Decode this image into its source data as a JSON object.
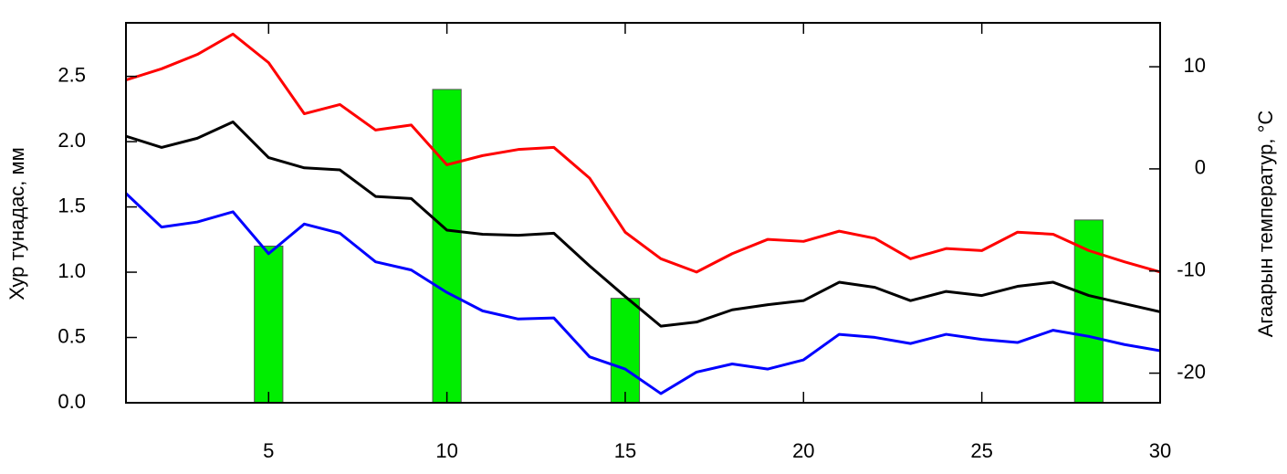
{
  "chart_data": {
    "type": "bar-line",
    "ylabel": "Хур тунадас, мм",
    "y2label": "Агаарын температур,  °C",
    "x": [
      1,
      2,
      3,
      4,
      5,
      6,
      7,
      8,
      9,
      10,
      11,
      12,
      13,
      14,
      15,
      16,
      17,
      18,
      19,
      20,
      21,
      22,
      23,
      24,
      25,
      26,
      27,
      28,
      29,
      30
    ],
    "xlim": [
      1,
      30
    ],
    "xticks": [
      5,
      10,
      15,
      20,
      25,
      30
    ],
    "ylim": [
      0,
      2.91
    ],
    "yticks": [
      {
        "value": 0,
        "label": "0.0"
      },
      0.5,
      {
        "value": 1,
        "label": "1.0"
      },
      1.5,
      {
        "value": 2,
        "label": "2.0"
      },
      2.5
    ],
    "y2lim": [
      -22.9,
      14.3
    ],
    "y2ticks": [
      -20,
      -10,
      0,
      10
    ],
    "bar_width": 0.8,
    "series": [
      {
        "type": "bar",
        "color": "#00ee00",
        "values": [
          null,
          null,
          null,
          null,
          1.2,
          null,
          null,
          null,
          null,
          2.4,
          null,
          null,
          null,
          null,
          0.8,
          null,
          null,
          null,
          null,
          null,
          null,
          null,
          null,
          null,
          null,
          null,
          null,
          1.4,
          null,
          null
        ]
      },
      {
        "type": "line",
        "axis": "y2",
        "color": "#ff0000",
        "values": [
          8.7,
          9.8,
          11.2,
          13.2,
          10.4,
          5.4,
          6.3,
          3.8,
          4.3,
          0.4,
          1.3,
          1.9,
          2.1,
          -0.9,
          -6.2,
          -8.8,
          -10.1,
          -8.3,
          -6.9,
          -7.1,
          -6.1,
          -6.8,
          -8.8,
          -7.8,
          -8.0,
          -6.2,
          -6.4,
          -8.0,
          -9.1,
          -10.1
        ]
      },
      {
        "type": "line",
        "axis": "y2",
        "color": "#000000",
        "values": [
          3.2,
          2.1,
          3.0,
          4.6,
          1.1,
          0.1,
          -0.1,
          -2.7,
          -2.9,
          -6.0,
          -6.4,
          -6.5,
          -6.3,
          -9.5,
          -12.5,
          -15.4,
          -15.0,
          -13.8,
          -13.3,
          -12.9,
          -11.1,
          -11.6,
          -12.9,
          -12.0,
          -12.4,
          -11.5,
          -11.1,
          -12.4,
          -13.2,
          -14.0
        ]
      },
      {
        "type": "line",
        "axis": "y2",
        "color": "#0000ff",
        "values": [
          -2.4,
          -5.7,
          -5.2,
          -4.2,
          -8.3,
          -5.4,
          -6.3,
          -9.1,
          -9.9,
          -12.1,
          -13.9,
          -14.7,
          -14.6,
          -18.4,
          -19.6,
          -22.0,
          -19.9,
          -19.1,
          -19.6,
          -18.7,
          -16.2,
          -16.5,
          -17.1,
          -16.2,
          -16.7,
          -17.0,
          -15.8,
          -16.4,
          -17.2,
          -17.8
        ]
      }
    ]
  }
}
